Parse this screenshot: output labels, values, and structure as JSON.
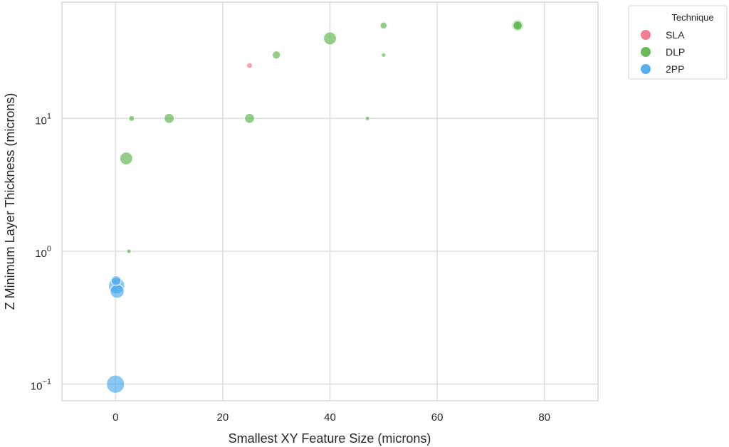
{
  "chart_data": {
    "type": "scatter",
    "xlabel": "Smallest XY Feature Size (microns)",
    "ylabel": "Z Minimum Layer Thickness (microns)",
    "xlim": [
      -10,
      90
    ],
    "ylim": [
      0.075,
      75
    ],
    "yscale": "log",
    "x_ticks": [
      0,
      20,
      40,
      60,
      80
    ],
    "y_ticks": [
      0.1,
      1,
      10
    ],
    "y_tick_labels": [
      {
        "base": "10",
        "exp": "−1"
      },
      {
        "base": "10",
        "exp": "0"
      },
      {
        "base": "10",
        "exp": "1"
      }
    ],
    "grid": true,
    "legend": {
      "title": "Technique",
      "placement": "outside-right-top",
      "entries": [
        {
          "label": "SLA",
          "color": "#f0677f"
        },
        {
          "label": "DLP",
          "color": "#4daf3a"
        },
        {
          "label": "2PP",
          "color": "#3ba3ec"
        }
      ]
    },
    "series": [
      {
        "name": "SLA",
        "color": "#f0677f",
        "points": [
          {
            "x": 25,
            "y": 25,
            "size": 1
          }
        ]
      },
      {
        "name": "DLP",
        "color": "#4daf3a",
        "points": [
          {
            "x": 50,
            "y": 50,
            "size": 1.5
          },
          {
            "x": 75,
            "y": 50,
            "size": 4
          },
          {
            "x": 75,
            "y": 50,
            "size": 2.5
          },
          {
            "x": 40,
            "y": 40,
            "size": 5
          },
          {
            "x": 30,
            "y": 30,
            "size": 2
          },
          {
            "x": 50,
            "y": 30,
            "size": 0.6
          },
          {
            "x": 3,
            "y": 10,
            "size": 1
          },
          {
            "x": 10,
            "y": 10,
            "size": 3
          },
          {
            "x": 25,
            "y": 10,
            "size": 3
          },
          {
            "x": 47,
            "y": 10,
            "size": 0.6
          },
          {
            "x": 2,
            "y": 5,
            "size": 5
          },
          {
            "x": 2.5,
            "y": 1,
            "size": 0.6
          }
        ]
      },
      {
        "name": "2PP",
        "color": "#3ba3ec",
        "points": [
          {
            "x": 0.2,
            "y": 0.55,
            "size": 8
          },
          {
            "x": 0.3,
            "y": 0.5,
            "size": 6
          },
          {
            "x": 0.1,
            "y": 0.6,
            "size": 3
          },
          {
            "x": 0,
            "y": 0.1,
            "size": 10
          }
        ]
      }
    ]
  }
}
